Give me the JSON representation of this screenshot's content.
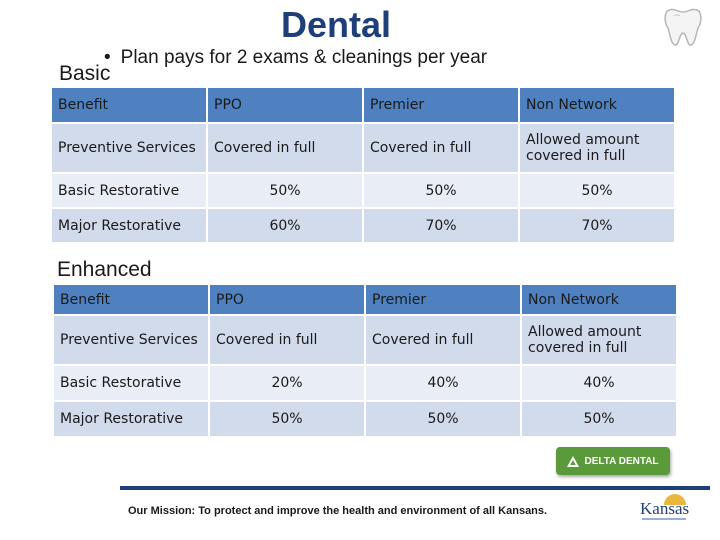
{
  "slide": {
    "title": "Dental",
    "bullet": "Plan pays for 2 exams & cleanings per year",
    "mission": "Our Mission: To protect and improve the health and environment of all Kansans.",
    "logo_text": "DELTA DENTAL",
    "brand_logo": "Kansas"
  },
  "basic": {
    "label": "Basic",
    "headers": [
      "Benefit",
      "PPO",
      "Premier",
      "Non Network"
    ],
    "rows": [
      [
        "Preventive Services",
        "Covered in full",
        "Covered in full",
        "Allowed amount covered in full"
      ],
      [
        "Basic Restorative",
        "50%",
        "50%",
        "50%"
      ],
      [
        "Major Restorative",
        "60%",
        "70%",
        "70%"
      ]
    ]
  },
  "enhanced": {
    "label": "Enhanced",
    "headers": [
      "Benefit",
      "PPO",
      "Premier",
      "Non Network"
    ],
    "rows": [
      [
        "Preventive Services",
        "Covered in full",
        "Covered in full",
        "Allowed amount covered in full"
      ],
      [
        "Basic Restorative",
        "20%",
        "40%",
        "40%"
      ],
      [
        "Major Restorative",
        "50%",
        "50%",
        "50%"
      ]
    ]
  },
  "colors": {
    "header": "#4f81c0",
    "row_dark": "#d2dbec",
    "row_light": "#e9edf5",
    "title": "#1f3f7a",
    "delta_green": "#5a9a3b"
  },
  "icons": [
    "tooth-icon",
    "delta-triangle-icon"
  ]
}
